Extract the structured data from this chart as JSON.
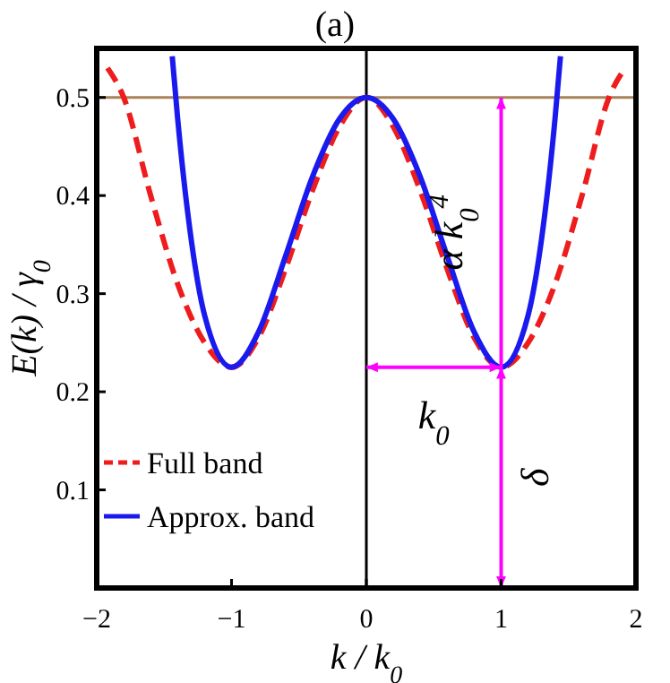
{
  "chart_data": {
    "type": "line",
    "title": "(a)",
    "xlabel": "k / k$_{0}$",
    "ylabel": "E(k) / γ$_{0}$",
    "xlim": [
      -2,
      2
    ],
    "ylim": [
      0,
      0.55
    ],
    "xticks": [
      {
        "value": -2,
        "label": "−2"
      },
      {
        "value": -1,
        "label": "−1"
      },
      0,
      1,
      2
    ],
    "yticks": [
      0.1,
      0.2,
      0.3,
      0.4,
      0.5
    ],
    "series": [
      {
        "name": "Full band",
        "color": "#ee1c1c",
        "line_style": "dashed",
        "x": [
          -1.92,
          -1.8,
          -1.6,
          -1.4,
          -1.2,
          -1,
          -0.8,
          -0.6,
          -0.4,
          -0.2,
          0,
          0.2,
          0.4,
          0.6,
          0.8,
          1,
          1.2,
          1.4,
          1.6,
          1.8,
          1.92
        ],
        "values": [
          0.53,
          0.5,
          0.4,
          0.31,
          0.25,
          0.225,
          0.255,
          0.325,
          0.405,
          0.47,
          0.5,
          0.47,
          0.405,
          0.325,
          0.255,
          0.225,
          0.25,
          0.31,
          0.4,
          0.5,
          0.53
        ]
      },
      {
        "name": "Approx. band",
        "color": "#1a1aee",
        "line_style": "solid",
        "x": [
          -1.44,
          -1.4,
          -1.3,
          -1.2,
          -1,
          -0.8,
          -0.6,
          -0.4,
          -0.2,
          0,
          0.2,
          0.4,
          0.6,
          0.8,
          1,
          1.2,
          1.3,
          1.4,
          1.44
        ],
        "values": [
          0.542,
          0.479,
          0.356,
          0.278,
          0.225,
          0.261,
          0.338,
          0.419,
          0.478,
          0.5,
          0.478,
          0.419,
          0.338,
          0.261,
          0.225,
          0.278,
          0.356,
          0.479,
          0.542
        ]
      }
    ],
    "ref_lines": [
      {
        "axis": "y",
        "value": 0.5,
        "color": "#a8825a"
      },
      {
        "axis": "x",
        "value": 0,
        "color": "#000000"
      }
    ],
    "annotations": [
      "α k$_{0}$$^{4}$",
      "k$_{0}$",
      "δ"
    ],
    "legend": "bottom left"
  }
}
